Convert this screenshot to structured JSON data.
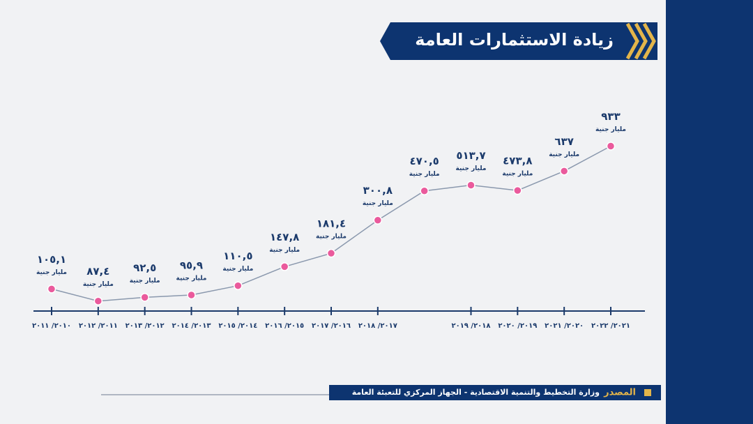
{
  "chart_data": {
    "type": "line",
    "title": "زيادة الاستثمارات العامة",
    "categories": [
      "٢٠١٠/ ٢٠١١",
      "٢٠١١/ ٢٠١٢",
      "٢٠١٢/ ٢٠١٣",
      "٢٠١٣/ ٢٠١٤",
      "٢٠١٤/ ٢٠١٥",
      "٢٠١٥/ ٢٠١٦",
      "٢٠١٦/ ٢٠١٧",
      "٢٠١٧/ ٢٠١٨",
      null,
      "٢٠١٨/ ٢٠١٩",
      "٢٠١٩/ ٢٠٢٠",
      "٢٠٢٠/ ٢٠٢١",
      "٢٠٢١/ ٢٠٢٢"
    ],
    "values": [
      105.1,
      87.4,
      92.5,
      95.9,
      110.5,
      147.8,
      181.4,
      300.8,
      470.5,
      513.7,
      473.8,
      637,
      933
    ],
    "value_labels": [
      "١٠٥,١",
      "٨٧,٤",
      "٩٢,٥",
      "٩٥,٩",
      "١١٠,٥",
      "١٤٧,٨",
      "١٨١,٤",
      "٣٠٠,٨",
      "٤٧٠,٥",
      "٥١٣,٧",
      "٤٧٣,٨",
      "٦٣٧",
      "٩٣٣"
    ],
    "unit_label": "مليار جنية",
    "log_scale": true,
    "ylim": [
      80,
      1000
    ],
    "line_color": "#8a98ad",
    "marker_color": "#ea5a9c",
    "source_label": "المصدر",
    "source": "وزارة التخطيط والتنمية الاقتصادية - الجهاز المركزي للتعبئة العامة"
  }
}
